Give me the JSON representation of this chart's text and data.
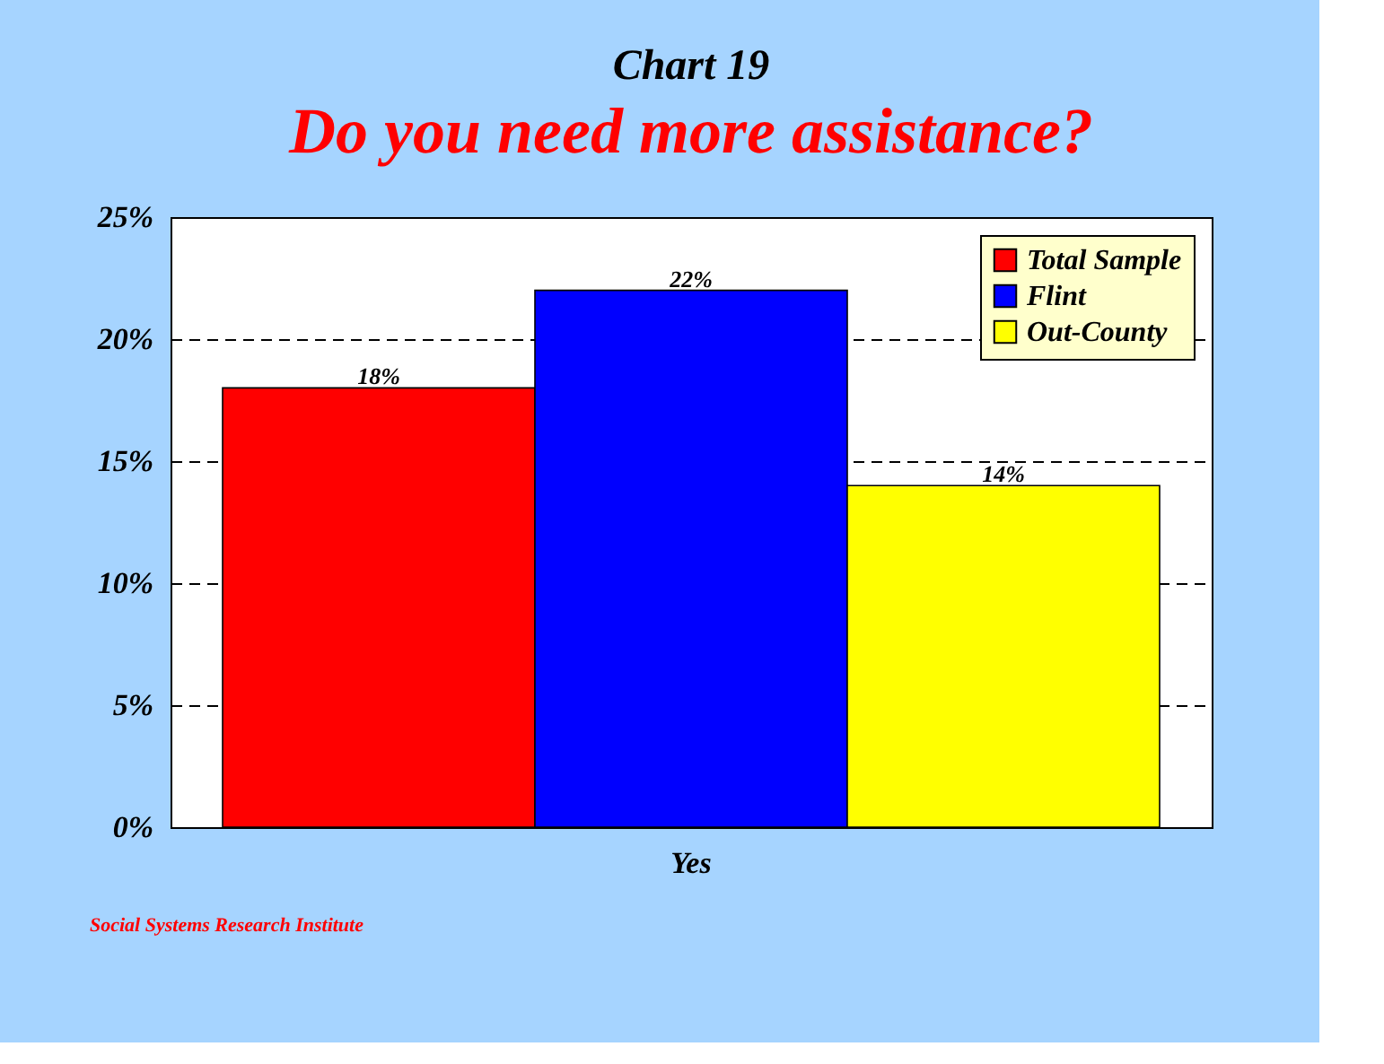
{
  "chart_data": {
    "type": "bar",
    "title": "Chart 19",
    "subtitle": "Do you need more assistance?",
    "categories": [
      "Yes"
    ],
    "series": [
      {
        "name": "Total Sample",
        "color": "#ff0000",
        "values": [
          18
        ],
        "value_labels": [
          "18%"
        ]
      },
      {
        "name": "Flint",
        "color": "#0000ff",
        "values": [
          22
        ],
        "value_labels": [
          "22%"
        ]
      },
      {
        "name": "Out-County",
        "color": "#ffff00",
        "values": [
          14
        ],
        "value_labels": [
          "14%"
        ]
      }
    ],
    "ylim": [
      0,
      25
    ],
    "yticks": [
      {
        "value": 0,
        "label": "0%"
      },
      {
        "value": 5,
        "label": "5%"
      },
      {
        "value": 10,
        "label": "10%"
      },
      {
        "value": 15,
        "label": "15%"
      },
      {
        "value": 20,
        "label": "20%"
      },
      {
        "value": 25,
        "label": "25%"
      }
    ],
    "grid": "y",
    "legend": "top right",
    "annotations": [
      "Social Systems Research Institute"
    ]
  }
}
